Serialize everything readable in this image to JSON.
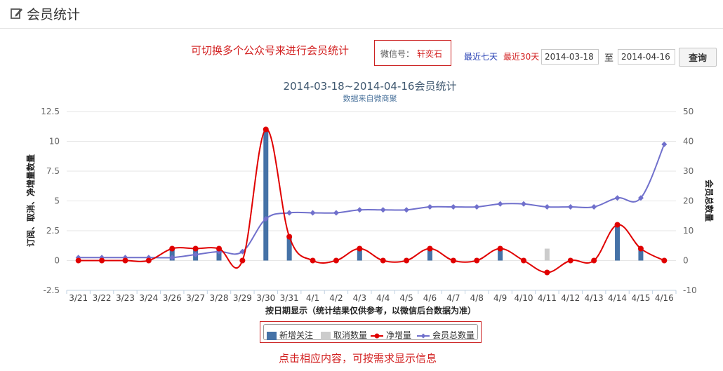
{
  "header": {
    "title": "会员统计",
    "icon": "edit-icon"
  },
  "hint_top": "可切换多个公众号来进行会员统计",
  "account": {
    "label": "微信号：",
    "value": "轩奕石"
  },
  "quick_links": {
    "last7": "最近七天",
    "last30": "最近30天"
  },
  "date_range": {
    "start": "2014-03-18",
    "to_label": "至",
    "end": "2014-04-16"
  },
  "query_button": "查询",
  "hint_bottom": "点击相应内容，可按需求显示信息",
  "colors": {
    "new": "#4572a7",
    "cancel": "#cccccc",
    "net": "#e00000",
    "total": "#7070cc",
    "accent": "#d21f1f"
  },
  "chart_data": {
    "type": "bar",
    "title": "2014-03-18~2014-04-16会员统计",
    "subtitle": "数据来自微商聚",
    "xlabel": "按日期显示（统计结果仅供参考，以微信后台数据为准）",
    "ylabel": "订阅、取消、净增量数量",
    "y2label": "会员总数量",
    "ylim": [
      -2.5,
      12.5
    ],
    "yticks": [
      "-2.5",
      "0",
      "2.5",
      "5",
      "7.5",
      "10",
      "12.5"
    ],
    "y2lim": [
      -10,
      50
    ],
    "y2ticks": [
      "-10",
      "0",
      "10",
      "20",
      "30",
      "40",
      "50"
    ],
    "categories": [
      "3/21",
      "3/22",
      "3/23",
      "3/24",
      "3/26",
      "3/27",
      "3/28",
      "3/29",
      "3/30",
      "3/31",
      "4/1",
      "4/2",
      "4/3",
      "4/4",
      "4/5",
      "4/6",
      "4/7",
      "4/8",
      "4/9",
      "4/10",
      "4/11",
      "4/12",
      "4/13",
      "4/14",
      "4/15",
      "4/16"
    ],
    "series": [
      {
        "name": "新增关注",
        "type": "bar",
        "axis": "left",
        "values": [
          0,
          0,
          0,
          0,
          1,
          1,
          1,
          0,
          11,
          2,
          0,
          0,
          1,
          0,
          0,
          1,
          0,
          0,
          1,
          0,
          0,
          0,
          0,
          3,
          1,
          0
        ]
      },
      {
        "name": "取消数量",
        "type": "bar",
        "axis": "left",
        "values": [
          0,
          0,
          0,
          0,
          0,
          0,
          0,
          0,
          0,
          0,
          0,
          0,
          0,
          0,
          0,
          0,
          0,
          0,
          0,
          0,
          1,
          0,
          0,
          0,
          0,
          0
        ]
      },
      {
        "name": "净增量",
        "type": "line",
        "axis": "left",
        "values": [
          0,
          0,
          0,
          0,
          1,
          1,
          1,
          0,
          11,
          2,
          0,
          0,
          1,
          0,
          0,
          1,
          0,
          0,
          1,
          0,
          -1,
          0,
          0,
          3,
          1,
          0
        ]
      },
      {
        "name": "会员总数量",
        "type": "line",
        "axis": "right",
        "values": [
          1,
          1,
          1,
          1,
          1,
          2,
          3,
          3,
          14,
          16,
          16,
          16,
          17,
          17,
          17,
          18,
          18,
          18,
          19,
          19,
          18,
          18,
          18,
          21,
          21,
          39
        ]
      }
    ],
    "legend_position": "bottom",
    "grid": "horizontal"
  }
}
